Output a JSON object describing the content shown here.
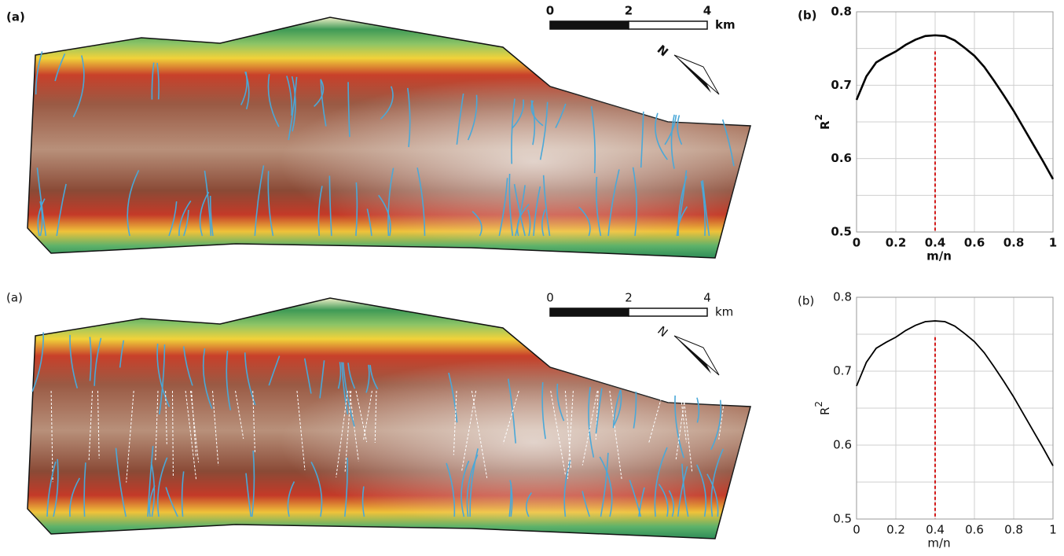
{
  "panels": [
    {
      "label": "(a)",
      "scale_ticks": [
        0,
        2,
        4
      ],
      "scale_unit": "km",
      "north": "N"
    },
    {
      "label": "(a)",
      "scale_ticks": [
        0,
        2,
        4
      ],
      "scale_unit": "km",
      "north": "N"
    }
  ],
  "chart_data": [
    {
      "type": "line",
      "label": "(b)",
      "xlabel": "m/n",
      "ylabel": "R",
      "ylabel_sup": "2",
      "x": [
        0,
        0.05,
        0.1,
        0.15,
        0.2,
        0.25,
        0.3,
        0.35,
        0.4,
        0.45,
        0.5,
        0.55,
        0.6,
        0.65,
        0.7,
        0.75,
        0.8,
        0.85,
        0.9,
        0.95,
        1
      ],
      "series": [
        {
          "color": "#000000",
          "values": [
            0.68,
            0.712,
            0.731,
            0.739,
            0.746,
            0.755,
            0.762,
            0.767,
            0.768,
            0.767,
            0.761,
            0.751,
            0.74,
            0.725,
            0.706,
            0.686,
            0.665,
            0.642,
            0.619,
            0.596,
            0.572
          ]
        }
      ],
      "xlim": [
        0,
        1
      ],
      "ylim": [
        0.5,
        0.8
      ],
      "xticks": [
        0,
        0.2,
        0.4,
        0.6,
        0.8,
        1
      ],
      "yticks": [
        0.5,
        0.6,
        0.7,
        0.8
      ],
      "y_minor_grid": [
        0.55,
        0.65,
        0.75
      ],
      "grid": true,
      "marker_x": 0.4,
      "marker_color": "#d00000"
    },
    {
      "type": "line",
      "label": "(b)",
      "xlabel": "m/n",
      "ylabel": "R",
      "ylabel_sup": "2",
      "x": [
        0,
        0.05,
        0.1,
        0.15,
        0.2,
        0.25,
        0.3,
        0.35,
        0.4,
        0.45,
        0.5,
        0.55,
        0.6,
        0.65,
        0.7,
        0.75,
        0.8,
        0.85,
        0.9,
        0.95,
        1
      ],
      "series": [
        {
          "color": "#000000",
          "values": [
            0.68,
            0.712,
            0.731,
            0.739,
            0.746,
            0.755,
            0.762,
            0.767,
            0.768,
            0.767,
            0.761,
            0.751,
            0.74,
            0.725,
            0.706,
            0.686,
            0.665,
            0.642,
            0.619,
            0.596,
            0.572
          ]
        }
      ],
      "xlim": [
        0,
        1
      ],
      "ylim": [
        0.5,
        0.8
      ],
      "xticks": [
        0,
        0.2,
        0.4,
        0.6,
        0.8,
        1
      ],
      "yticks": [
        0.5,
        0.6,
        0.7,
        0.8
      ],
      "y_minor_grid": [
        0.55,
        0.65,
        0.75
      ],
      "grid": true,
      "marker_x": 0.4,
      "marker_color": "#d00000"
    }
  ]
}
